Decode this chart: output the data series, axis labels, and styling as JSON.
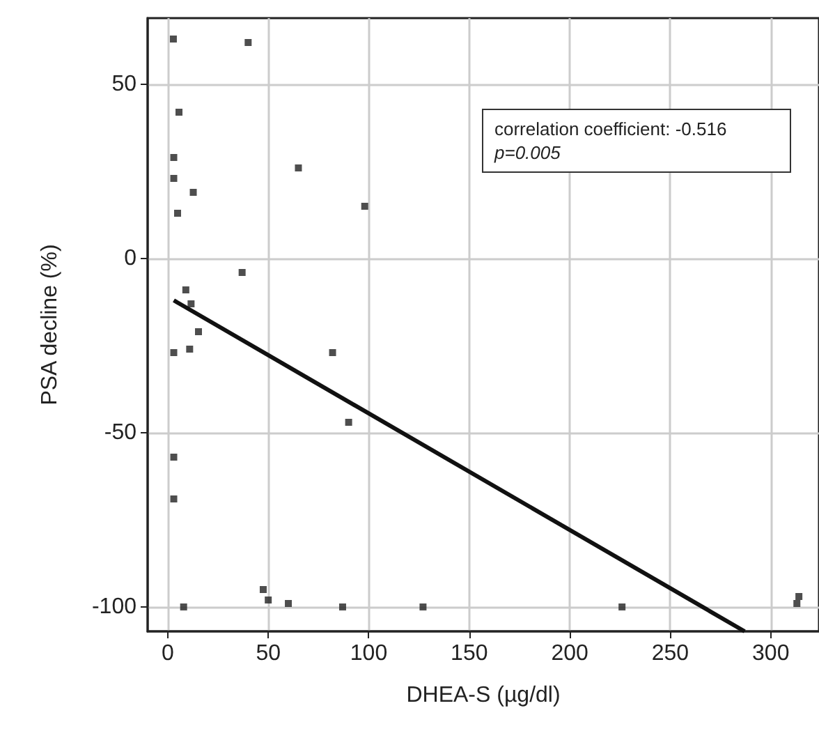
{
  "chart_data": {
    "type": "scatter",
    "xlabel": "DHEA-S (µg/dl)",
    "ylabel": "PSA decline (%)",
    "xlim": [
      -10,
      324
    ],
    "ylim": [
      -107,
      69
    ],
    "xticks": [
      0,
      50,
      100,
      150,
      200,
      250,
      300
    ],
    "yticks": [
      -100,
      -50,
      0,
      50
    ],
    "grid": true,
    "marker": "square",
    "annotations": [
      "correlation coefficient: -0.516",
      "p=0.005"
    ],
    "series": [
      {
        "color": "#222222",
        "x": [
          2.8,
          40,
          5.6,
          3,
          3,
          12.7,
          4.9,
          65,
          98,
          37,
          9,
          11.6,
          15.3,
          10.9,
          3,
          82,
          90,
          3,
          3,
          47.5,
          50,
          7.9,
          60,
          87,
          127,
          226,
          313,
          314
        ],
        "values": [
          63,
          62,
          42,
          29,
          23,
          19,
          13,
          26,
          15,
          -4,
          -9,
          -13,
          -21,
          -26,
          -27,
          -27,
          -47,
          -57,
          -69,
          -95,
          -98,
          -100,
          -99,
          -100,
          -100,
          -100,
          -99,
          -97
        ]
      },
      {
        "type": "line",
        "color": "#111111",
        "marker": "none",
        "x": [
          3,
          287
        ],
        "values": [
          -12,
          -107
        ]
      }
    ]
  }
}
